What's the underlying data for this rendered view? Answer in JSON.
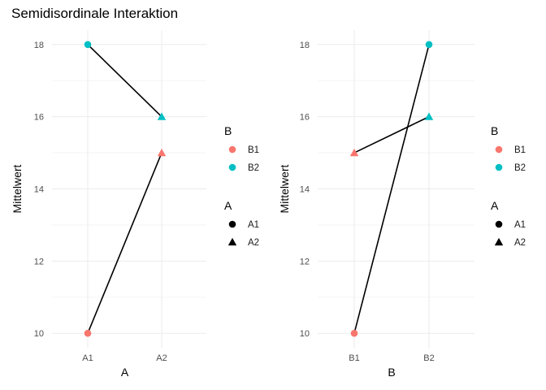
{
  "title": "Semidisordinale Interaktion",
  "colors": {
    "B1": "#F8766D",
    "B2": "#00BFC4",
    "line": "#000000"
  },
  "chart_data": [
    {
      "type": "line",
      "xlabel": "A",
      "ylabel": "Mittelwert",
      "categories": [
        "A1",
        "A2"
      ],
      "ylim": [
        9.6,
        18.4
      ],
      "yticks": [
        10,
        12,
        14,
        16,
        18
      ],
      "grid": true,
      "series": [
        {
          "name": "B1",
          "values": [
            10,
            15
          ],
          "shapes": [
            "A1",
            "A2"
          ]
        },
        {
          "name": "B2",
          "values": [
            18,
            16
          ],
          "shapes": [
            "A1",
            "A2"
          ]
        }
      ],
      "legends": [
        {
          "title": "B",
          "kind": "color",
          "entries": [
            "B1",
            "B2"
          ]
        },
        {
          "title": "A",
          "kind": "shape",
          "entries": [
            "A1",
            "A2"
          ]
        }
      ]
    },
    {
      "type": "line",
      "xlabel": "B",
      "ylabel": "Mittelwert",
      "categories": [
        "B1",
        "B2"
      ],
      "ylim": [
        9.6,
        18.4
      ],
      "yticks": [
        10,
        12,
        14,
        16,
        18
      ],
      "grid": true,
      "series": [
        {
          "name": "A1",
          "values": [
            10,
            18
          ],
          "colors": [
            "B1",
            "B2"
          ],
          "shape": "A1"
        },
        {
          "name": "A2",
          "values": [
            15,
            16
          ],
          "colors": [
            "B1",
            "B2"
          ],
          "shape": "A2"
        }
      ],
      "legends": [
        {
          "title": "B",
          "kind": "color",
          "entries": [
            "B1",
            "B2"
          ]
        },
        {
          "title": "A",
          "kind": "shape",
          "entries": [
            "A1",
            "A2"
          ]
        }
      ]
    }
  ]
}
